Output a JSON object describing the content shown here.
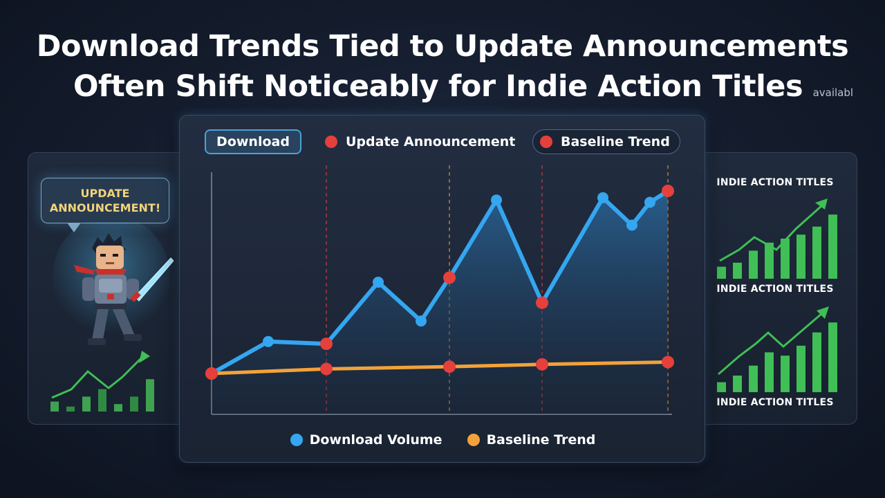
{
  "title": {
    "line1": "Download Trends Tied to Update Announcements",
    "line2": "Often Shift Noticeably for Indie Action Titles",
    "suffix": "availabl"
  },
  "left_panel": {
    "bubble_line1": "UPDATE",
    "bubble_line2": "ANNOUNCEMENT!"
  },
  "right_panel": {
    "label_top": "INDIE ACTION TITLES",
    "label_middle": "INDIE ACTION TITLES",
    "label_bottom": "INDIE ACTION TITLES"
  },
  "legend_top": {
    "download": "Download",
    "update_announcement": "Update Announcement",
    "baseline_trend": "Baseline Trend"
  },
  "legend_bottom": {
    "download_volume": "Download Volume",
    "baseline_trend": "Baseline Trend"
  },
  "colors": {
    "download": "#35a6f0",
    "baseline": "#f2a23a",
    "announcement": "#e5403c",
    "green": "#3fbf55"
  },
  "chart_data": {
    "type": "line",
    "title": "Download Trends Tied to Update Announcements Often Shift Noticeably for Indie Action Titles",
    "xlabel": "",
    "ylabel": "",
    "x": [
      0,
      1,
      2,
      3,
      4,
      5,
      6,
      7,
      8,
      9,
      10,
      11
    ],
    "ylim": [
      0,
      100
    ],
    "grid": false,
    "legend": "top",
    "announcement_indices": [
      0,
      2,
      5,
      7,
      11
    ],
    "series": [
      {
        "name": "Download Volume",
        "values": [
          10,
          24,
          23,
          50,
          33,
          52,
          86,
          41,
          87,
          75,
          85,
          90
        ]
      },
      {
        "name": "Baseline Trend",
        "values": [
          10,
          null,
          12,
          null,
          null,
          13,
          null,
          14,
          null,
          null,
          null,
          15
        ]
      }
    ]
  },
  "side_charts": {
    "left_mini": {
      "bars": [
        4,
        2,
        6,
        9,
        3,
        6,
        13
      ]
    },
    "right_top": {
      "bars": [
        3,
        4,
        7,
        9,
        10,
        11,
        13,
        16
      ]
    },
    "right_bottom": {
      "bars": [
        3,
        5,
        8,
        12,
        11,
        14,
        18,
        21
      ]
    }
  }
}
